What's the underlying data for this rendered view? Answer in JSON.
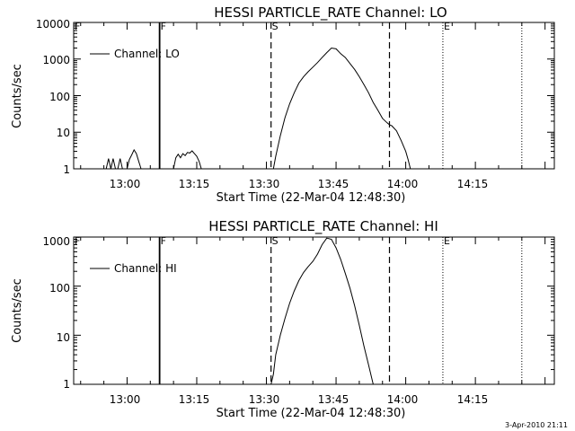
{
  "footer": {
    "stamp": "3-Apr-2010 21:11"
  },
  "chart_data": [
    {
      "type": "line",
      "title": "HESSI PARTICLE_RATE Channel: LO",
      "xlabel": "Start Time (22-Mar-04 12:48:30)",
      "ylabel": "Counts/sec",
      "yscale": "log",
      "xlim": [
        "12:48:30",
        "14:32:00"
      ],
      "ylim": [
        1,
        10000
      ],
      "xticks": [
        "13:00",
        "13:15",
        "13:30",
        "13:45",
        "14:00",
        "14:15"
      ],
      "yticks": [
        "1",
        "10",
        "100",
        "1000",
        "10000"
      ],
      "legend": {
        "placement": "top-left",
        "entries": [
          "Channel: LO"
        ]
      },
      "grid": false,
      "markers": [
        {
          "label": "F",
          "time": "12:48:30",
          "style": "none"
        },
        {
          "label": "F",
          "time": "13:07:00",
          "style": "solid"
        },
        {
          "label": "S",
          "time": "13:31:00",
          "style": "dashed"
        },
        {
          "label": "",
          "time": "13:56:30",
          "style": "dashed"
        },
        {
          "label": "E",
          "time": "14:08:00",
          "style": "dotted"
        },
        {
          "label": "",
          "time": "14:25:00",
          "style": "dotted"
        }
      ],
      "series": [
        {
          "name": "Channel: LO",
          "segments": [
            [
              [
                "12:55:30",
                1
              ],
              [
                "12:56:00",
                1.9
              ],
              [
                "12:56:30",
                1
              ],
              [
                "12:57:00",
                1.9
              ],
              [
                "12:57:30",
                1
              ],
              [
                "12:58:00",
                1
              ],
              [
                "12:58:30",
                1.9
              ],
              [
                "12:59:00",
                1
              ],
              [
                "13:00:00",
                1
              ],
              [
                "13:00:30",
                1.8
              ],
              [
                "13:01:00",
                2.4
              ],
              [
                "13:01:30",
                3.3
              ],
              [
                "13:02:00",
                2.6
              ],
              [
                "13:02:30",
                1.6
              ],
              [
                "13:03:00",
                1
              ]
            ],
            [
              [
                "13:10:00",
                1
              ],
              [
                "13:10:30",
                2.0
              ],
              [
                "13:11:00",
                2.5
              ],
              [
                "13:11:30",
                2.0
              ],
              [
                "13:12:00",
                2.6
              ],
              [
                "13:12:30",
                2.3
              ],
              [
                "13:13:00",
                2.8
              ],
              [
                "13:13:30",
                2.7
              ],
              [
                "13:14:00",
                3.1
              ],
              [
                "13:14:30",
                2.6
              ],
              [
                "13:15:00",
                2.2
              ],
              [
                "13:15:30",
                1.6
              ],
              [
                "13:16:00",
                1
              ]
            ],
            [
              [
                "13:31:30",
                1
              ],
              [
                "13:32:00",
                2.2
              ],
              [
                "13:33:00",
                8
              ],
              [
                "13:34:00",
                25
              ],
              [
                "13:35:00",
                60
              ],
              [
                "13:36:00",
                120
              ],
              [
                "13:37:00",
                220
              ],
              [
                "13:38:00",
                330
              ],
              [
                "13:39:00",
                450
              ],
              [
                "13:40:00",
                600
              ],
              [
                "13:41:00",
                800
              ],
              [
                "13:42:00",
                1100
              ],
              [
                "13:43:00",
                1500
              ],
              [
                "13:44:00",
                2000
              ],
              [
                "13:45:00",
                1900
              ],
              [
                "13:46:00",
                1400
              ],
              [
                "13:47:00",
                1100
              ],
              [
                "13:48:00",
                750
              ],
              [
                "13:49:00",
                520
              ],
              [
                "13:50:00",
                330
              ],
              [
                "13:51:00",
                200
              ],
              [
                "13:52:00",
                120
              ],
              [
                "13:53:00",
                65
              ],
              [
                "13:54:00",
                40
              ],
              [
                "13:55:00",
                24
              ],
              [
                "13:56:00",
                18
              ],
              [
                "13:56:30",
                16
              ],
              [
                "13:57:00",
                15
              ],
              [
                "13:58:00",
                11
              ],
              [
                "13:59:00",
                6
              ],
              [
                "14:00:00",
                3
              ],
              [
                "14:00:30",
                1.8
              ],
              [
                "14:01:00",
                1
              ]
            ]
          ]
        }
      ]
    },
    {
      "type": "line",
      "title": "HESSI PARTICLE_RATE Channel: HI",
      "xlabel": "Start Time (22-Mar-04 12:48:30)",
      "ylabel": "Counts/sec",
      "yscale": "log",
      "xlim": [
        "12:48:30",
        "14:32:00"
      ],
      "ylim": [
        1,
        1000
      ],
      "xticks": [
        "13:00",
        "13:15",
        "13:30",
        "13:45",
        "14:00",
        "14:15"
      ],
      "yticks": [
        "1",
        "10",
        "100",
        "1000"
      ],
      "legend": {
        "placement": "top-left",
        "entries": [
          "Channel: HI"
        ]
      },
      "grid": false,
      "markers": [
        {
          "label": "F",
          "time": "12:48:30",
          "style": "none"
        },
        {
          "label": "F",
          "time": "13:07:00",
          "style": "solid"
        },
        {
          "label": "S",
          "time": "13:31:00",
          "style": "dashed"
        },
        {
          "label": "",
          "time": "13:56:30",
          "style": "dashed"
        },
        {
          "label": "E",
          "time": "14:08:00",
          "style": "dotted"
        },
        {
          "label": "",
          "time": "14:25:00",
          "style": "dotted"
        }
      ],
      "series": [
        {
          "name": "Channel: HI",
          "segments": [
            [
              [
                "13:31:00",
                1
              ],
              [
                "13:31:30",
                1.6
              ],
              [
                "13:32:00",
                4
              ],
              [
                "13:33:00",
                10
              ],
              [
                "13:34:00",
                22
              ],
              [
                "13:35:00",
                45
              ],
              [
                "13:36:00",
                80
              ],
              [
                "13:37:00",
                130
              ],
              [
                "13:38:00",
                190
              ],
              [
                "13:39:00",
                250
              ],
              [
                "13:40:00",
                320
              ],
              [
                "13:41:00",
                450
              ],
              [
                "13:42:00",
                700
              ],
              [
                "13:43:00",
                950
              ],
              [
                "13:44:00",
                900
              ],
              [
                "13:45:00",
                600
              ],
              [
                "13:46:00",
                350
              ],
              [
                "13:47:00",
                180
              ],
              [
                "13:48:00",
                90
              ],
              [
                "13:49:00",
                40
              ],
              [
                "13:50:00",
                16
              ],
              [
                "13:51:00",
                6
              ],
              [
                "13:52:00",
                2.5
              ],
              [
                "13:53:00",
                1
              ]
            ]
          ]
        }
      ]
    }
  ]
}
